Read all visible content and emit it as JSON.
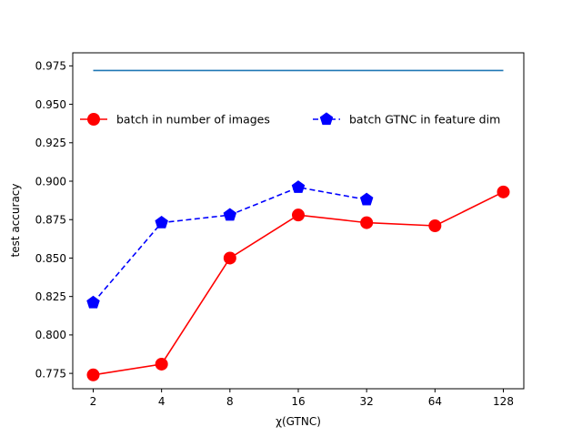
{
  "chart_data": {
    "type": "line",
    "title": "",
    "xlabel": "χ(GTNC)",
    "ylabel": "test accuracy",
    "x_scale": "log2",
    "x_ticks": [
      2,
      4,
      8,
      16,
      32,
      64,
      128
    ],
    "x_tick_labels": [
      "2",
      "4",
      "8",
      "16",
      "32",
      "64",
      "128"
    ],
    "ylim": [
      0.765,
      0.9835
    ],
    "y_ticks": [
      0.775,
      0.8,
      0.825,
      0.85,
      0.875,
      0.9,
      0.925,
      0.95,
      0.975
    ],
    "y_tick_labels": [
      "0.775",
      "0.800",
      "0.825",
      "0.850",
      "0.875",
      "0.900",
      "0.925",
      "0.950",
      "0.975"
    ],
    "grid": false,
    "legend_position": "upper-center",
    "series": [
      {
        "name": "batch in number of images",
        "x": [
          2,
          4,
          8,
          16,
          32,
          64,
          128
        ],
        "y": [
          0.774,
          0.781,
          0.85,
          0.878,
          0.873,
          0.871,
          0.893
        ],
        "color": "#ff0000",
        "line_style": "solid",
        "marker": "circle"
      },
      {
        "name": "batch GTNC in feature dim",
        "x": [
          2,
          4,
          8,
          16,
          32
        ],
        "y": [
          0.821,
          0.873,
          0.878,
          0.896,
          0.888
        ],
        "color": "#0000ff",
        "line_style": "dashed",
        "marker": "pentagon"
      },
      {
        "name": "",
        "x": [
          2,
          128
        ],
        "y": [
          0.972,
          0.972
        ],
        "color": "#1f77b4",
        "line_style": "solid",
        "marker": "none"
      }
    ]
  }
}
